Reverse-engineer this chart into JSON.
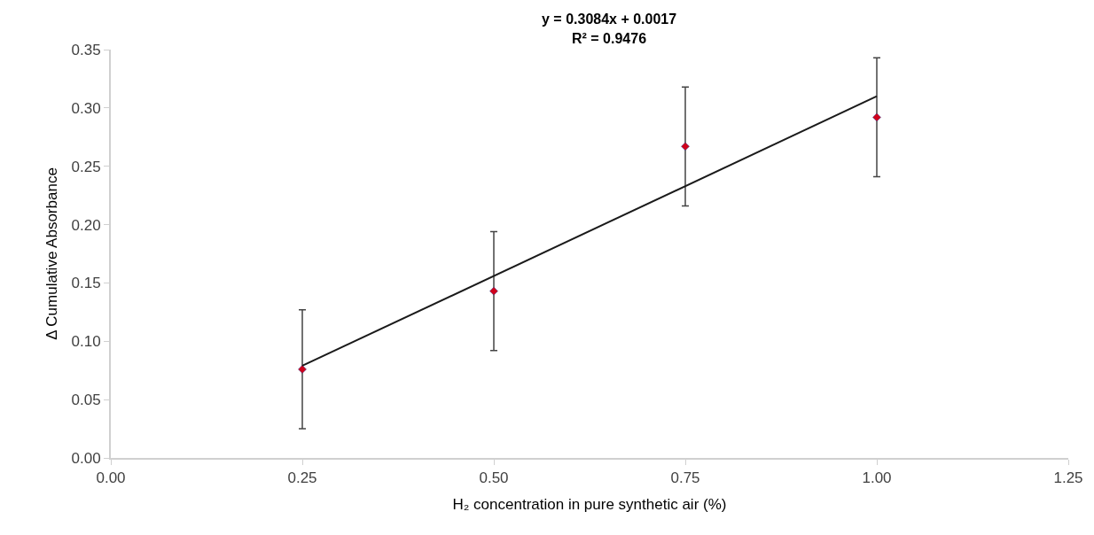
{
  "chart_data": {
    "type": "scatter",
    "xlabel": "H₂ concentration in pure synthetic air (%)",
    "ylabel": "Δ Cumulative Absorbance",
    "annotations": [
      "y = 0.3084x + 0.0017",
      "R² = 0.9476"
    ],
    "x": [
      0.25,
      0.5,
      0.75,
      1.0
    ],
    "series": [
      {
        "color": "#d0021b",
        "values": [
          0.076,
          0.143,
          0.267,
          0.292
        ],
        "errors": [
          0.051,
          0.051,
          0.051,
          0.051
        ],
        "marker": "diamond"
      },
      {
        "type": "line",
        "color": "#1a1a1a",
        "x": [
          0.25,
          1.0
        ],
        "values": [
          0.079,
          0.31
        ],
        "line_style": "solid"
      }
    ],
    "xlim": [
      0,
      1.25
    ],
    "xticks": [
      {
        "value": 0,
        "label": "0.00"
      },
      0.25,
      {
        "value": 0.5,
        "label": "0.50"
      },
      0.75,
      {
        "value": 1,
        "label": "1.00"
      },
      1.25
    ],
    "ylim": [
      0,
      0.35
    ],
    "yticks": [
      {
        "value": 0,
        "label": "0.00"
      },
      0.05,
      {
        "value": 0.1,
        "label": "0.10"
      },
      0.15,
      {
        "value": 0.2,
        "label": "0.20"
      },
      0.25,
      {
        "value": 0.3,
        "label": "0.30"
      },
      0.35
    ]
  }
}
